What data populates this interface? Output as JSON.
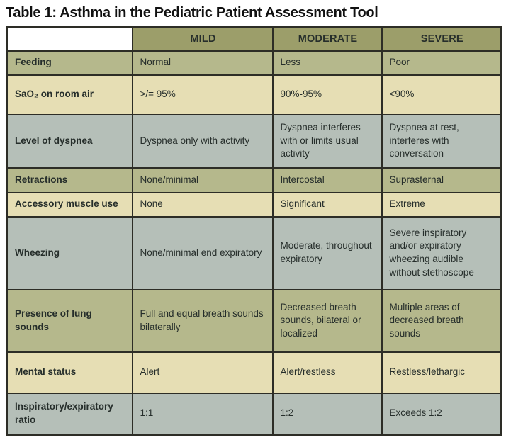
{
  "page": {
    "title": "Table 1: Asthma in the Pediatric Patient Assessment Tool"
  },
  "table": {
    "headers": {
      "col0": "",
      "mild": "MILD",
      "moderate": "MODERATE",
      "severe": "SEVERE"
    },
    "rows": [
      {
        "label": "Feeding",
        "mild": "Normal",
        "moderate": "Less",
        "severe": "Poor"
      },
      {
        "label": "SaO₂ on room air",
        "mild": ">/= 95%",
        "moderate": "90%-95%",
        "severe": "<90%"
      },
      {
        "label": "Level of dyspnea",
        "mild": "Dyspnea only with activity",
        "moderate": "Dyspnea interferes with or limits usual activity",
        "severe": "Dyspnea at rest, interferes with conversation"
      },
      {
        "label": "Retractions",
        "mild": "None/minimal",
        "moderate": "Intercostal",
        "severe": "Suprasternal"
      },
      {
        "label": "Accessory muscle use",
        "mild": "None",
        "moderate": "Significant",
        "severe": "Extreme"
      },
      {
        "label": "Wheezing",
        "mild": "None/minimal end expiratory",
        "moderate": "Moderate, throughout expiratory",
        "severe": "Severe inspiratory and/or expiratory wheezing audible without stethoscope"
      },
      {
        "label": "Presence of lung sounds",
        "mild": "Full and equal breath sounds bilaterally",
        "moderate": "Decreased breath sounds, bilateral or localized",
        "severe": "Multiple areas of decreased breath sounds"
      },
      {
        "label": "Mental status",
        "mild": "Alert",
        "moderate": "Alert/restless",
        "severe": "Restless/lethargic"
      },
      {
        "label": "Inspiratory/expiratory ratio",
        "mild": "1:1",
        "moderate": "1:2",
        "severe": "Exceeds 1:2"
      }
    ]
  },
  "colors": {
    "header_bg": "#9c9e6a",
    "row_olive": "#b5b88c",
    "row_cream": "#e6deb4",
    "row_slate": "#b5bfb8",
    "border": "#2d2d26",
    "text": "#262e2b",
    "title_text": "#111111"
  }
}
